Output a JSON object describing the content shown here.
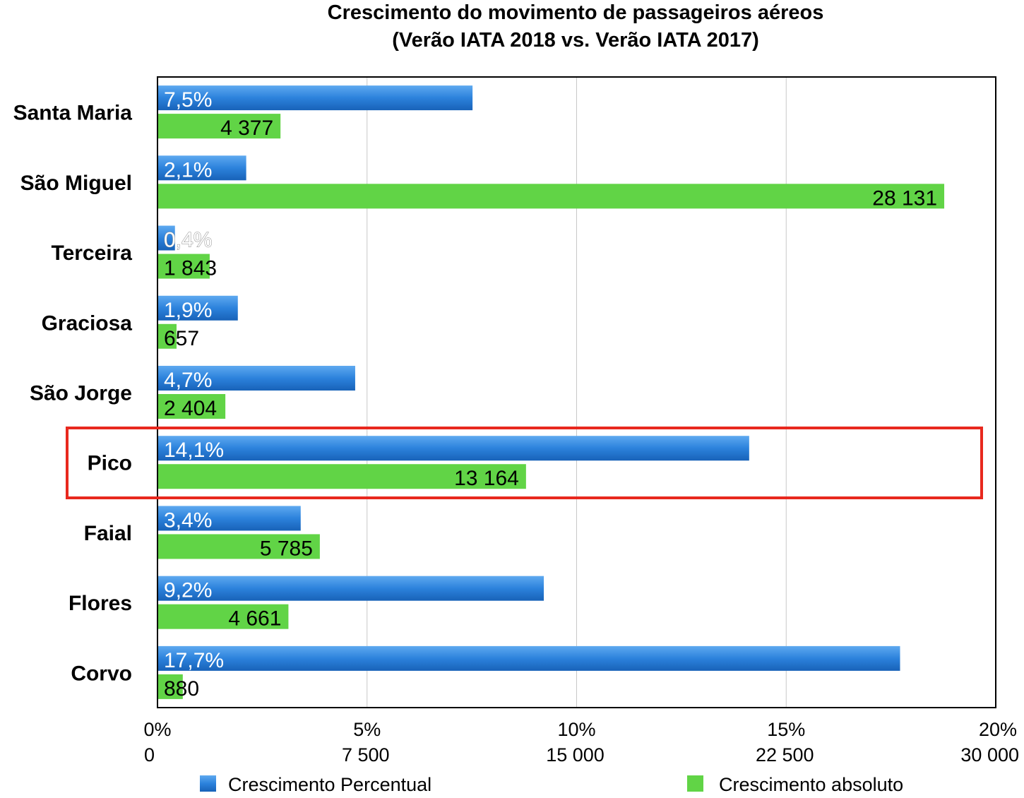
{
  "chart_data": {
    "type": "bar",
    "orientation": "horizontal",
    "title_line1": "Crescimento do movimento de passageiros aéreos",
    "title_line2": "(Verão IATA 2018 vs. Verão IATA 2017)",
    "categories": [
      "Santa Maria",
      "São Miguel",
      "Terceira",
      "Graciosa",
      "São Jorge",
      "Pico",
      "Faial",
      "Flores",
      "Corvo"
    ],
    "series": [
      {
        "name": "Crescimento Percentual",
        "axis": "percent",
        "values": [
          7.5,
          2.1,
          0.4,
          1.9,
          4.7,
          14.1,
          3.4,
          9.2,
          17.7
        ],
        "labels": [
          "7,5%",
          "2,1%",
          "0,4%",
          "1,9%",
          "4,7%",
          "14,1%",
          "3,4%",
          "9,2%",
          "17,7%"
        ],
        "color": "#2a7fd6"
      },
      {
        "name": "Crescimento absoluto",
        "axis": "absolute",
        "values": [
          4377,
          28131,
          1843,
          657,
          2404,
          13164,
          5785,
          4661,
          880
        ],
        "labels": [
          "4 377",
          "28 131",
          "1 843",
          "657",
          "2 404",
          "13 164",
          "5 785",
          "4 661",
          "880"
        ],
        "color": "#61d446"
      }
    ],
    "axes": {
      "percent": {
        "min": 0,
        "max": 20,
        "ticks": [
          "0%",
          "5%",
          "10%",
          "15%",
          "20%"
        ]
      },
      "absolute": {
        "min": 0,
        "max": 30000,
        "ticks": [
          "0",
          "7 500",
          "15 000",
          "22 500",
          "30 000"
        ]
      }
    },
    "highlight_category": "Pico",
    "highlight_color": "#e8281e",
    "grid": true,
    "legend_position": "bottom"
  }
}
